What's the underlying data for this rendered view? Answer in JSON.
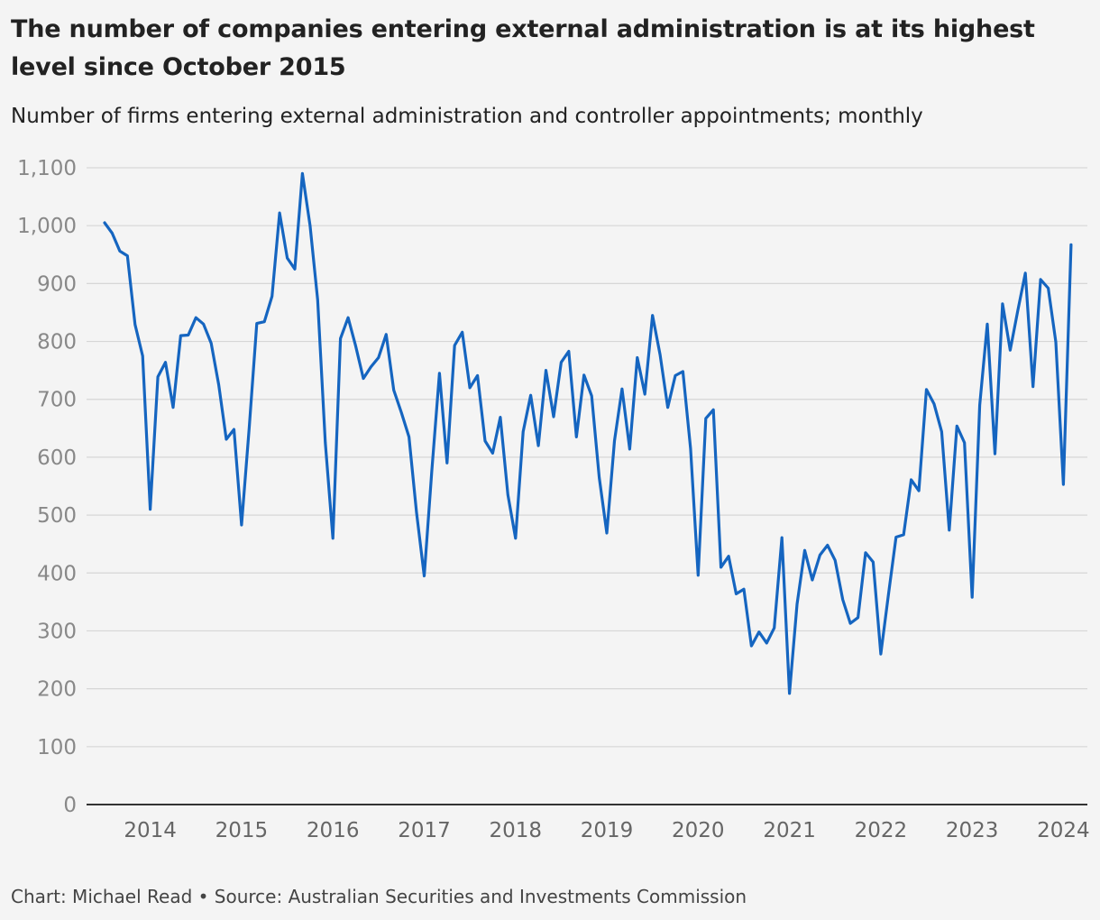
{
  "title": "The number of companies entering external administration is at its highest level since October 2015",
  "subtitle": "Number of firms entering external administration and controller appointments; monthly",
  "footer": "Chart: Michael Read • Source: Australian Securities and Investments Commission",
  "colors": {
    "line": "#1565c0",
    "grid": "#d6d6d6",
    "axis": "#333333",
    "background": "#f4f4f4"
  },
  "chart_data": {
    "type": "line",
    "title": "The number of companies entering external administration is at its highest level since October 2015",
    "subtitle": "Number of firms entering external administration and controller appointments; monthly",
    "xlabel": "",
    "ylabel": "",
    "ylim": [
      0,
      1100
    ],
    "y_ticks": [
      0,
      100,
      200,
      300,
      400,
      500,
      600,
      700,
      800,
      900,
      1000,
      1100
    ],
    "y_tick_labels": [
      "0",
      "100",
      "200",
      "300",
      "400",
      "500",
      "600",
      "700",
      "800",
      "900",
      "1,000",
      "1,100"
    ],
    "x_tick_labels": [
      "2014",
      "2015",
      "2016",
      "2017",
      "2018",
      "2019",
      "2020",
      "2021",
      "2022",
      "2023",
      "2024"
    ],
    "x_start": "2013-07",
    "grid": true,
    "legend": "none",
    "series": [
      {
        "values": [
          1005,
          987,
          956,
          948,
          829,
          775,
          510,
          739,
          764,
          686,
          810,
          811,
          841,
          830,
          797,
          725,
          631,
          648,
          483,
          651,
          831,
          834,
          878,
          1022,
          944,
          925,
          1090,
          1000,
          872,
          625,
          460,
          805,
          841,
          792,
          736,
          756,
          772,
          812,
          716,
          677,
          635,
          504,
          395,
          576,
          745,
          590,
          793,
          816,
          720,
          741,
          628,
          607,
          669,
          535,
          460,
          644,
          707,
          620,
          750,
          670,
          764,
          783,
          635,
          742,
          706,
          565,
          469,
          628,
          718,
          614,
          772,
          709,
          845,
          777,
          686,
          741,
          748,
          615,
          396,
          667,
          682,
          410,
          429,
          364,
          372,
          274,
          298,
          279,
          305,
          461,
          192,
          346,
          439,
          388,
          431,
          448,
          422,
          354,
          313,
          323,
          435,
          419,
          260,
          362,
          462,
          466,
          561,
          542,
          717,
          692,
          644,
          474,
          654,
          625,
          358,
          690,
          830,
          606,
          865,
          785,
          853,
          918,
          722,
          907,
          892,
          799,
          553,
          967
        ]
      }
    ]
  }
}
